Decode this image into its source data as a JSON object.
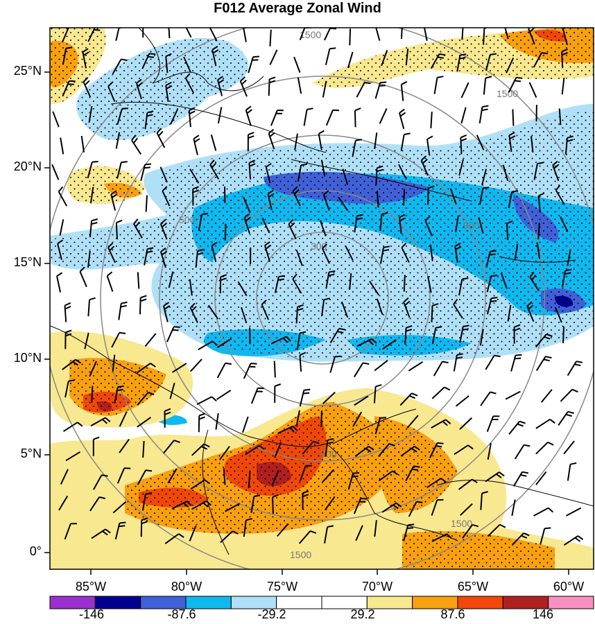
{
  "title": "F012 Average Zonal Wind",
  "lat_ticks": [
    {
      "label": "25°N",
      "value": 25
    },
    {
      "label": "20°N",
      "value": 20
    },
    {
      "label": "15°N",
      "value": 15
    },
    {
      "label": "10°N",
      "value": 10
    },
    {
      "label": "5°N",
      "value": 5
    },
    {
      "label": "0°",
      "value": 0
    }
  ],
  "lon_ticks": [
    {
      "label": "85°W",
      "value": -85
    },
    {
      "label": "80°W",
      "value": -80
    },
    {
      "label": "75°W",
      "value": -75
    },
    {
      "label": "70°W",
      "value": -70
    },
    {
      "label": "65°W",
      "value": -65
    },
    {
      "label": "60°W",
      "value": -60
    }
  ],
  "range_ring_labels": [
    "300",
    "500",
    "900",
    "1500"
  ],
  "colorbar": {
    "colors": [
      "#9b30d0",
      "#000090",
      "#4060d8",
      "#10b8f0",
      "#b0e0f8",
      "#ffffff",
      "#ffffff",
      "#f8e890",
      "#f8a010",
      "#f04808",
      "#b02020",
      "#f890c0"
    ],
    "labels": [
      {
        "text": "-146",
        "index": 1
      },
      {
        "text": "-87.6",
        "index": 3
      },
      {
        "text": "-29.2",
        "index": 5
      },
      {
        "text": "29.2",
        "index": 7
      },
      {
        "text": "87.6",
        "index": 9
      },
      {
        "text": "146",
        "index": 11
      }
    ]
  },
  "colors": {
    "gridline": "#888888",
    "coast": "#000000",
    "frame": "#000000"
  }
}
